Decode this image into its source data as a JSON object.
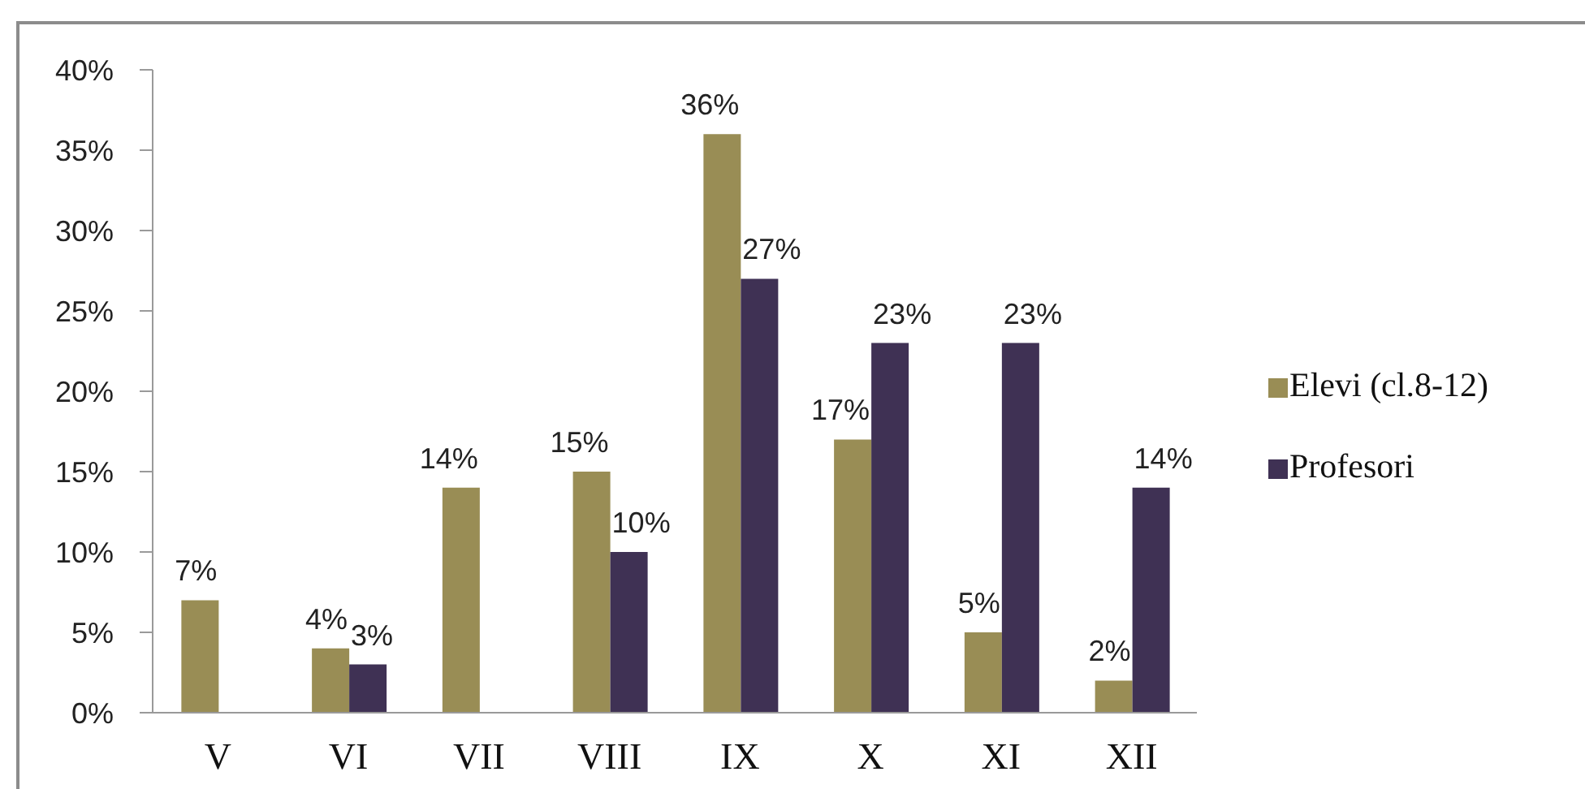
{
  "chart_data": {
    "type": "bar",
    "categories": [
      "V",
      "VI",
      "VII",
      "VIII",
      "IX",
      "X",
      "XI",
      "XII"
    ],
    "series": [
      {
        "name": "Elevi (cl.8-12)",
        "color": "#998d55",
        "values": [
          7,
          4,
          14,
          15,
          36,
          17,
          5,
          2
        ],
        "value_labels": [
          "7%",
          "4%",
          "14%",
          "15%",
          "36%",
          "17%",
          "5%",
          "2%"
        ]
      },
      {
        "name": "Profesori",
        "color": "#3f3154",
        "values": [
          null,
          3,
          null,
          10,
          27,
          23,
          23,
          14
        ],
        "value_labels": [
          null,
          "3%",
          null,
          "10%",
          "27%",
          "23%",
          "23%",
          "14%"
        ]
      }
    ],
    "ylim": [
      0,
      40
    ],
    "yticks": [
      {
        "value": 0,
        "label": "0%"
      },
      {
        "value": 5,
        "label": "5%"
      },
      {
        "value": 10,
        "label": "10%"
      },
      {
        "value": 15,
        "label": "15%"
      },
      {
        "value": 20,
        "label": "20%"
      },
      {
        "value": 25,
        "label": "25%"
      },
      {
        "value": 30,
        "label": "30%"
      },
      {
        "value": 35,
        "label": "35%"
      },
      {
        "value": 40,
        "label": "40%"
      }
    ],
    "legend": "right"
  }
}
